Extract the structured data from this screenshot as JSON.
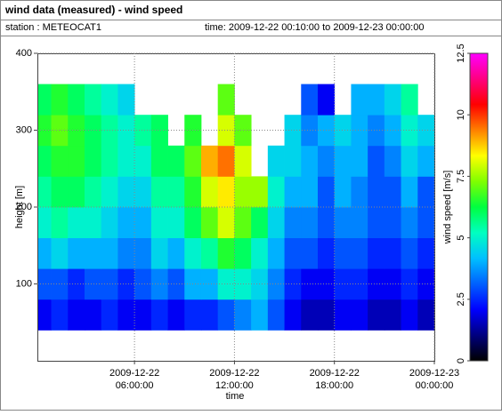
{
  "chart_data": {
    "type": "heatmap",
    "title": "wind data (measured) - wind speed",
    "station": "station : METEOCAT1",
    "period": "time: 2009-12-22 00:10:00 to 2009-12-23 00:00:00",
    "xlabel": "time",
    "ylabel": "height [m]",
    "colorbar_label": "wind speed [m/s]",
    "xlim": [
      0.17,
      24
    ],
    "xticks": [
      {
        "value": 6,
        "label": [
          "2009-12-22",
          "06:00:00"
        ]
      },
      {
        "value": 12,
        "label": [
          "2009-12-22",
          "12:00:00"
        ]
      },
      {
        "value": 18,
        "label": [
          "2009-12-22",
          "18:00:00"
        ]
      },
      {
        "value": 24,
        "label": [
          "2009-12-23",
          "00:00:00"
        ]
      }
    ],
    "ylim": [
      0,
      400
    ],
    "yticks": [
      100,
      200,
      300,
      400
    ],
    "zlim": [
      0,
      12.5
    ],
    "zticks": [
      0,
      2.5,
      5,
      7.5,
      10,
      12.5
    ],
    "colorscale": [
      "#000000",
      "#00007f",
      "#0000ff",
      "#0060ff",
      "#00c0ff",
      "#00ffc0",
      "#00ff40",
      "#80ff00",
      "#ffff00",
      "#ff8000",
      "#ff0000",
      "#ff0080",
      "#ff00ff"
    ],
    "grid": true,
    "xbins": [
      0.17,
      1,
      2,
      3,
      4,
      5,
      6,
      7,
      8,
      9,
      10,
      11,
      12,
      13,
      14,
      15,
      16,
      17,
      18,
      19,
      20,
      21,
      22,
      23,
      24
    ],
    "ybins": [
      40,
      80,
      120,
      160,
      200,
      240,
      280,
      320,
      360
    ],
    "values": [
      [
        2,
        2.5,
        2,
        2,
        2.5,
        2,
        2,
        2.5,
        2,
        2.5,
        2.5,
        3,
        3.5,
        4,
        3,
        2,
        1.5,
        1.5,
        2,
        2,
        1.5,
        1.5,
        2,
        1.5
      ],
      [
        3,
        3,
        2.5,
        3,
        3,
        2.5,
        3,
        3.5,
        3,
        4,
        4,
        5,
        5,
        4.5,
        3.5,
        2.5,
        2,
        2,
        2.5,
        2.5,
        2,
        2,
        2.5,
        2
      ],
      [
        4,
        4.5,
        4,
        4,
        4,
        3.5,
        3.5,
        4.5,
        4,
        5,
        5.5,
        6.5,
        6,
        5,
        4,
        3,
        3,
        2.5,
        3,
        3,
        2.5,
        2.5,
        3,
        2.5
      ],
      [
        5,
        5.5,
        5,
        5,
        4.5,
        4,
        4,
        5,
        5,
        6,
        7,
        8,
        7,
        6,
        4.5,
        3.5,
        3.5,
        3,
        3.5,
        3.5,
        3,
        3,
        3.5,
        3
      ],
      [
        5.5,
        6,
        6,
        5.5,
        5,
        4.5,
        4.5,
        5.5,
        5.5,
        6.5,
        8,
        8.5,
        7.5,
        7.5,
        5,
        4,
        4,
        3,
        4,
        3.5,
        3,
        3,
        4,
        3
      ],
      [
        6,
        6.5,
        6.5,
        6,
        5.5,
        5,
        5,
        6,
        6,
        7,
        9,
        9.5,
        8,
        null,
        4.5,
        4.5,
        4,
        3.5,
        4,
        4,
        3,
        3.5,
        4.5,
        4
      ],
      [
        6.5,
        7,
        6.5,
        6,
        5.5,
        5,
        5.5,
        6,
        null,
        6.5,
        null,
        8,
        7,
        null,
        null,
        4.5,
        3.5,
        4,
        4.5,
        4,
        3.5,
        4,
        5,
        4.5
      ],
      [
        6,
        6.5,
        6,
        5.5,
        5,
        4.5,
        null,
        null,
        null,
        null,
        null,
        7,
        null,
        null,
        null,
        null,
        3,
        2,
        null,
        4,
        4,
        4.5,
        5.5,
        null
      ]
    ]
  }
}
